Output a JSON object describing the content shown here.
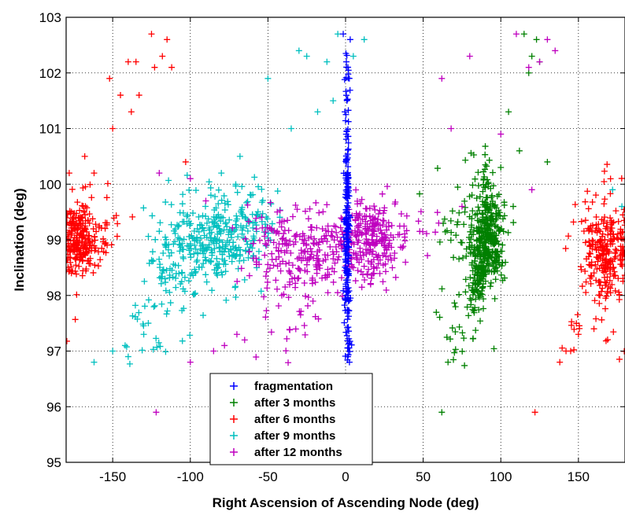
{
  "chart_data": {
    "type": "scatter",
    "title": "",
    "xlabel": "Right Ascension of Ascending Node (deg)",
    "ylabel": "Inclination (deg)",
    "xlim": [
      -180,
      180
    ],
    "ylim": [
      95,
      103
    ],
    "xticks": [
      -150,
      -100,
      -50,
      0,
      50,
      100,
      150
    ],
    "yticks": [
      95,
      96,
      97,
      98,
      99,
      100,
      101,
      102,
      103
    ],
    "xtick_labels": [
      "-150",
      "-100",
      "-50",
      "0",
      "50",
      "100",
      "150"
    ],
    "ytick_labels": [
      "95",
      "96",
      "97",
      "98",
      "99",
      "100",
      "101",
      "102",
      "103"
    ],
    "grid": true,
    "marker": "+",
    "legend_position": "bottom-center",
    "series": [
      {
        "name": "fragmentation",
        "color": "#0000ff",
        "clusters": [
          {
            "x": 1,
            "y": 99.0,
            "sx": 0.8,
            "sy": 0.9,
            "n": 180
          },
          {
            "x": 1,
            "y": 101.5,
            "sx": 0.8,
            "sy": 0.9,
            "n": 30
          },
          {
            "x": 2,
            "y": 97.3,
            "sx": 0.8,
            "sy": 0.3,
            "n": 12
          }
        ],
        "points": [
          [
            -1.5,
            102.7
          ],
          [
            3,
            102.6
          ],
          [
            0.5,
            102.2
          ],
          [
            2.5,
            96.8
          ],
          [
            1.5,
            96.9
          ],
          [
            -0.5,
            101.3
          ]
        ]
      },
      {
        "name": "after 3 months",
        "color": "#008000",
        "clusters": [
          {
            "x": 92,
            "y": 99.0,
            "sx": 5,
            "sy": 0.4,
            "n": 300
          },
          {
            "x": 85,
            "y": 98.4,
            "sx": 3,
            "sy": 0.4,
            "n": 100
          },
          {
            "x": 90,
            "y": 99.8,
            "sx": 5,
            "sy": 0.4,
            "n": 50
          },
          {
            "x": 72,
            "y": 99.4,
            "sx": 9,
            "sy": 0.4,
            "n": 30
          },
          {
            "x": 75,
            "y": 97.4,
            "sx": 7,
            "sy": 0.4,
            "n": 25
          }
        ],
        "points": [
          [
            62,
            95.9
          ],
          [
            66,
            96.8
          ],
          [
            115,
            102.7
          ],
          [
            120,
            102.3
          ],
          [
            118,
            102.0
          ],
          [
            123,
            102.6
          ],
          [
            125,
            102.2
          ],
          [
            105,
            101.3
          ],
          [
            112,
            100.6
          ],
          [
            100,
            100.3
          ],
          [
            108,
            99.6
          ],
          [
            130,
            100.4
          ]
        ]
      },
      {
        "name": "after 6 months",
        "color": "#ff0000",
        "clusters": [
          {
            "x": -172,
            "y": 99.0,
            "sx": 6,
            "sy": 0.3,
            "n": 220
          },
          {
            "x": -160,
            "y": 99.3,
            "sx": 8,
            "sy": 0.4,
            "n": 40
          },
          {
            "x": 168,
            "y": 98.7,
            "sx": 7,
            "sy": 0.4,
            "n": 200
          },
          {
            "x": 160,
            "y": 99.2,
            "sx": 9,
            "sy": 0.5,
            "n": 40
          },
          {
            "x": 155,
            "y": 97.3,
            "sx": 12,
            "sy": 0.3,
            "n": 18
          }
        ],
        "points": [
          [
            -125,
            102.7
          ],
          [
            -115,
            102.6
          ],
          [
            -118,
            102.3
          ],
          [
            -123,
            102.1
          ],
          [
            -112,
            102.1
          ],
          [
            -140,
            102.2
          ],
          [
            -135,
            102.2
          ],
          [
            -152,
            101.9
          ],
          [
            -145,
            101.6
          ],
          [
            -133,
            101.6
          ],
          [
            -138,
            101.3
          ],
          [
            -150,
            101.0
          ],
          [
            -103,
            100.4
          ],
          [
            -168,
            100.5
          ],
          [
            -162,
            100.2
          ],
          [
            -178,
            100.2
          ],
          [
            122,
            95.9
          ],
          [
            138,
            96.8
          ],
          [
            142,
            97.0
          ],
          [
            145,
            97.0
          ],
          [
            160,
            97.4
          ],
          [
            150,
            97.3
          ]
        ]
      },
      {
        "name": "after 9 months",
        "color": "#00bfbf",
        "clusters": [
          {
            "x": -85,
            "y": 99.0,
            "sx": 14,
            "sy": 0.4,
            "n": 260
          },
          {
            "x": -110,
            "y": 98.5,
            "sx": 12,
            "sy": 0.5,
            "n": 80
          },
          {
            "x": -60,
            "y": 99.3,
            "sx": 10,
            "sy": 0.4,
            "n": 60
          },
          {
            "x": -125,
            "y": 97.4,
            "sx": 10,
            "sy": 0.3,
            "n": 20
          }
        ],
        "points": [
          [
            -162,
            96.8
          ],
          [
            -150,
            97.0
          ],
          [
            -142,
            97.1
          ],
          [
            -140,
            96.9
          ],
          [
            -130,
            97.3
          ],
          [
            -50,
            101.9
          ],
          [
            -35,
            101.0
          ],
          [
            -25,
            102.3
          ],
          [
            -12,
            102.2
          ],
          [
            -18,
            101.3
          ],
          [
            -5,
            102.7
          ],
          [
            5,
            102.3
          ],
          [
            12,
            102.6
          ],
          [
            -30,
            102.4
          ],
          [
            -8,
            101.5
          ],
          [
            -68,
            100.5
          ],
          [
            -80,
            100.2
          ],
          [
            172,
            99.9
          ],
          [
            178,
            99.6
          ]
        ]
      },
      {
        "name": "after 12 months",
        "color": "#bf00bf",
        "clusters": [
          {
            "x": 15,
            "y": 99.0,
            "sx": 14,
            "sy": 0.35,
            "n": 280
          },
          {
            "x": -25,
            "y": 98.7,
            "sx": 14,
            "sy": 0.45,
            "n": 150
          },
          {
            "x": -50,
            "y": 98.9,
            "sx": 10,
            "sy": 0.45,
            "n": 50
          },
          {
            "x": -35,
            "y": 97.6,
            "sx": 12,
            "sy": 0.4,
            "n": 25
          }
        ],
        "points": [
          [
            -122,
            95.9
          ],
          [
            -100,
            96.8
          ],
          [
            -85,
            97.0
          ],
          [
            -78,
            97.1
          ],
          [
            -70,
            97.3
          ],
          [
            -65,
            97.2
          ],
          [
            -120,
            100.2
          ],
          [
            -100,
            100.1
          ],
          [
            -90,
            99.7
          ],
          [
            62,
            101.9
          ],
          [
            68,
            101.0
          ],
          [
            80,
            102.3
          ],
          [
            110,
            102.7
          ],
          [
            130,
            102.6
          ],
          [
            135,
            102.4
          ],
          [
            118,
            102.1
          ],
          [
            125,
            102.2
          ],
          [
            100,
            100.9
          ],
          [
            120,
            99.9
          ],
          [
            60,
            99.3
          ],
          [
            75,
            99.6
          ]
        ]
      }
    ]
  }
}
